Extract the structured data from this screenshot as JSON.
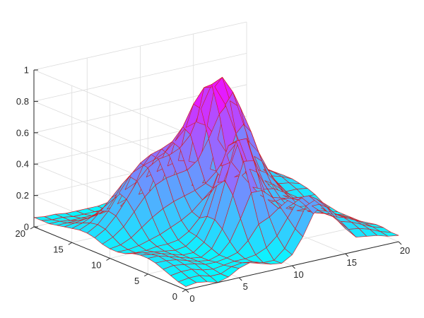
{
  "chart_data": {
    "type": "surface",
    "title": "",
    "xlabel": "",
    "ylabel": "",
    "zlabel": "",
    "x": [
      0,
      1,
      2,
      3,
      4,
      5,
      6,
      7,
      8,
      9,
      10,
      11,
      12,
      13,
      14,
      15,
      16,
      17,
      18,
      19,
      20
    ],
    "y": [
      0,
      1,
      2,
      3,
      4,
      5,
      6,
      7,
      8,
      9,
      10,
      11,
      12,
      13,
      14,
      15,
      16,
      17,
      18,
      19,
      20
    ],
    "z": [
      [
        0.02,
        0.03,
        0.02,
        0.0,
        0.02,
        0.06,
        0.08,
        0.06,
        0.04,
        0.03,
        0.07,
        0.17,
        0.3,
        0.35,
        0.27,
        0.16,
        0.09,
        0.08,
        0.07,
        0.05,
        0.04
      ],
      [
        0.03,
        0.04,
        0.04,
        0.02,
        0.02,
        0.05,
        0.06,
        0.05,
        0.03,
        0.03,
        0.09,
        0.2,
        0.33,
        0.36,
        0.29,
        0.19,
        0.12,
        0.11,
        0.09,
        0.06,
        0.04
      ],
      [
        0.05,
        0.06,
        0.06,
        0.04,
        0.03,
        0.04,
        0.05,
        0.05,
        0.06,
        0.09,
        0.15,
        0.25,
        0.35,
        0.36,
        0.29,
        0.21,
        0.15,
        0.13,
        0.1,
        0.07,
        0.05
      ],
      [
        0.07,
        0.08,
        0.07,
        0.06,
        0.04,
        0.04,
        0.05,
        0.07,
        0.13,
        0.22,
        0.25,
        0.3,
        0.34,
        0.33,
        0.26,
        0.2,
        0.16,
        0.14,
        0.11,
        0.07,
        0.05
      ],
      [
        0.09,
        0.09,
        0.08,
        0.06,
        0.04,
        0.03,
        0.05,
        0.12,
        0.25,
        0.4,
        0.4,
        0.34,
        0.32,
        0.27,
        0.22,
        0.18,
        0.16,
        0.14,
        0.11,
        0.07,
        0.04
      ],
      [
        0.1,
        0.1,
        0.08,
        0.06,
        0.04,
        0.03,
        0.07,
        0.18,
        0.38,
        0.58,
        0.57,
        0.4,
        0.28,
        0.22,
        0.19,
        0.17,
        0.16,
        0.14,
        0.1,
        0.06,
        0.03
      ],
      [
        0.1,
        0.09,
        0.08,
        0.06,
        0.04,
        0.04,
        0.09,
        0.22,
        0.45,
        0.69,
        0.69,
        0.46,
        0.27,
        0.2,
        0.19,
        0.18,
        0.17,
        0.14,
        0.09,
        0.06,
        0.03
      ],
      [
        0.09,
        0.08,
        0.07,
        0.06,
        0.05,
        0.06,
        0.11,
        0.22,
        0.42,
        0.64,
        0.66,
        0.46,
        0.28,
        0.22,
        0.22,
        0.21,
        0.18,
        0.14,
        0.09,
        0.05,
        0.03
      ],
      [
        0.07,
        0.06,
        0.06,
        0.07,
        0.07,
        0.08,
        0.12,
        0.19,
        0.33,
        0.49,
        0.5,
        0.4,
        0.31,
        0.28,
        0.27,
        0.23,
        0.19,
        0.13,
        0.08,
        0.05,
        0.03
      ],
      [
        0.06,
        0.06,
        0.07,
        0.09,
        0.11,
        0.14,
        0.17,
        0.21,
        0.27,
        0.33,
        0.36,
        0.37,
        0.39,
        0.39,
        0.35,
        0.27,
        0.19,
        0.12,
        0.07,
        0.05,
        0.04
      ],
      [
        0.06,
        0.07,
        0.1,
        0.15,
        0.2,
        0.24,
        0.27,
        0.29,
        0.31,
        0.34,
        0.4,
        0.49,
        0.56,
        0.55,
        0.46,
        0.32,
        0.2,
        0.12,
        0.08,
        0.06,
        0.05
      ],
      [
        0.07,
        0.1,
        0.15,
        0.23,
        0.31,
        0.37,
        0.4,
        0.41,
        0.42,
        0.47,
        0.59,
        0.73,
        0.8,
        0.74,
        0.57,
        0.37,
        0.21,
        0.12,
        0.09,
        0.08,
        0.08
      ],
      [
        0.09,
        0.13,
        0.2,
        0.29,
        0.39,
        0.46,
        0.5,
        0.51,
        0.54,
        0.61,
        0.76,
        0.9,
        0.93,
        0.82,
        0.6,
        0.38,
        0.21,
        0.13,
        0.11,
        0.11,
        0.1
      ],
      [
        0.1,
        0.14,
        0.21,
        0.31,
        0.4,
        0.47,
        0.51,
        0.53,
        0.56,
        0.64,
        0.77,
        0.86,
        0.85,
        0.72,
        0.52,
        0.33,
        0.2,
        0.15,
        0.14,
        0.13,
        0.11
      ],
      [
        0.1,
        0.13,
        0.19,
        0.26,
        0.33,
        0.39,
        0.42,
        0.44,
        0.47,
        0.53,
        0.6,
        0.62,
        0.58,
        0.48,
        0.36,
        0.25,
        0.19,
        0.17,
        0.17,
        0.15,
        0.12
      ],
      [
        0.09,
        0.11,
        0.14,
        0.18,
        0.22,
        0.26,
        0.29,
        0.31,
        0.33,
        0.35,
        0.37,
        0.35,
        0.32,
        0.27,
        0.23,
        0.2,
        0.19,
        0.2,
        0.19,
        0.16,
        0.12
      ],
      [
        0.08,
        0.09,
        0.1,
        0.11,
        0.13,
        0.15,
        0.17,
        0.18,
        0.19,
        0.19,
        0.18,
        0.17,
        0.16,
        0.16,
        0.17,
        0.18,
        0.2,
        0.22,
        0.2,
        0.16,
        0.11
      ],
      [
        0.07,
        0.07,
        0.07,
        0.07,
        0.08,
        0.09,
        0.1,
        0.1,
        0.1,
        0.09,
        0.09,
        0.1,
        0.11,
        0.13,
        0.15,
        0.18,
        0.21,
        0.23,
        0.2,
        0.15,
        0.1
      ],
      [
        0.06,
        0.06,
        0.05,
        0.05,
        0.05,
        0.06,
        0.06,
        0.06,
        0.06,
        0.06,
        0.07,
        0.09,
        0.11,
        0.13,
        0.15,
        0.18,
        0.21,
        0.22,
        0.19,
        0.14,
        0.09
      ],
      [
        0.06,
        0.05,
        0.05,
        0.04,
        0.04,
        0.04,
        0.04,
        0.05,
        0.05,
        0.06,
        0.07,
        0.09,
        0.11,
        0.13,
        0.15,
        0.17,
        0.19,
        0.2,
        0.17,
        0.13,
        0.08
      ],
      [
        0.06,
        0.05,
        0.05,
        0.04,
        0.04,
        0.04,
        0.04,
        0.05,
        0.05,
        0.06,
        0.07,
        0.09,
        0.11,
        0.13,
        0.14,
        0.16,
        0.18,
        0.18,
        0.16,
        0.12,
        0.08
      ]
    ],
    "xlim": [
      0,
      20
    ],
    "ylim": [
      0,
      20
    ],
    "zlim": [
      0,
      1
    ],
    "x_ticks": [
      0,
      5,
      10,
      15,
      20
    ],
    "y_ticks": [
      0,
      5,
      10,
      15,
      20
    ],
    "z_ticks": [
      0,
      0.2,
      0.4,
      0.6,
      0.8,
      1
    ],
    "x_tick_labels": [
      "0",
      "5",
      "10",
      "15",
      "20"
    ],
    "y_tick_labels": [
      "0",
      "5",
      "10",
      "15",
      "20"
    ],
    "z_tick_labels": [
      "0",
      "0.2",
      "0.4",
      "0.6",
      "0.8",
      "1"
    ],
    "grid": true,
    "colormap": "cool",
    "colormap_stops": [
      "#00ffff",
      "#ff00ff"
    ],
    "mesh_edge_color": "#d0202a",
    "axis_color": "#262626",
    "grid_color": "#dcdcdc",
    "background": "#ffffff"
  }
}
